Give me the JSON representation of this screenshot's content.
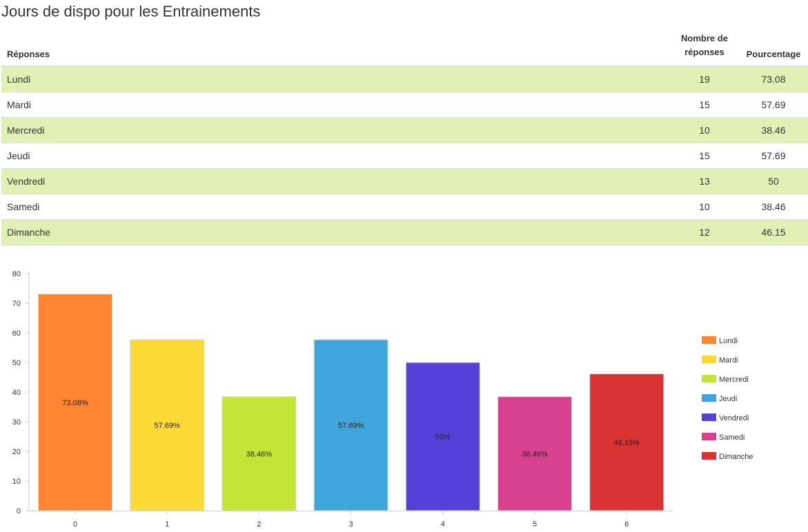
{
  "title": "Jours de dispo pour les Entrainements",
  "table": {
    "headers": {
      "response": "Réponses",
      "count_line1": "Nombre de",
      "count_line2": "réponses",
      "percent": "Pourcentage"
    },
    "rows": [
      {
        "label": "Lundi",
        "count": "19",
        "percent": "73.08"
      },
      {
        "label": "Mardi",
        "count": "15",
        "percent": "57.69"
      },
      {
        "label": "Mercredi",
        "count": "10",
        "percent": "38.46"
      },
      {
        "label": "Jeudi",
        "count": "15",
        "percent": "57.69"
      },
      {
        "label": "Vendredi",
        "count": "13",
        "percent": "50"
      },
      {
        "label": "Samedi",
        "count": "10",
        "percent": "38.46"
      },
      {
        "label": "Dimanche",
        "count": "12",
        "percent": "46.15"
      }
    ]
  },
  "chart_data": {
    "type": "bar",
    "categories": [
      "0",
      "1",
      "2",
      "3",
      "4",
      "5",
      "6"
    ],
    "values": [
      73.08,
      57.69,
      38.46,
      57.69,
      50,
      38.46,
      46.15
    ],
    "data_labels": [
      "73.08%",
      "57.69%",
      "38.46%",
      "57.69%",
      "50%",
      "38.46%",
      "46.15%"
    ],
    "colors": [
      "#ff8533",
      "#fcd934",
      "#c2e538",
      "#3fa5db",
      "#5540d8",
      "#d8418f",
      "#d63332"
    ],
    "ylim": [
      0,
      80
    ],
    "yticks": [
      0,
      10,
      20,
      30,
      40,
      50,
      60,
      70,
      80
    ],
    "legend": [
      "Lundi",
      "Mardi",
      "Mercredi",
      "Jeudi",
      "Vendredi",
      "Samedi",
      "Dimanche"
    ],
    "legend_position": "right",
    "grid": false
  }
}
